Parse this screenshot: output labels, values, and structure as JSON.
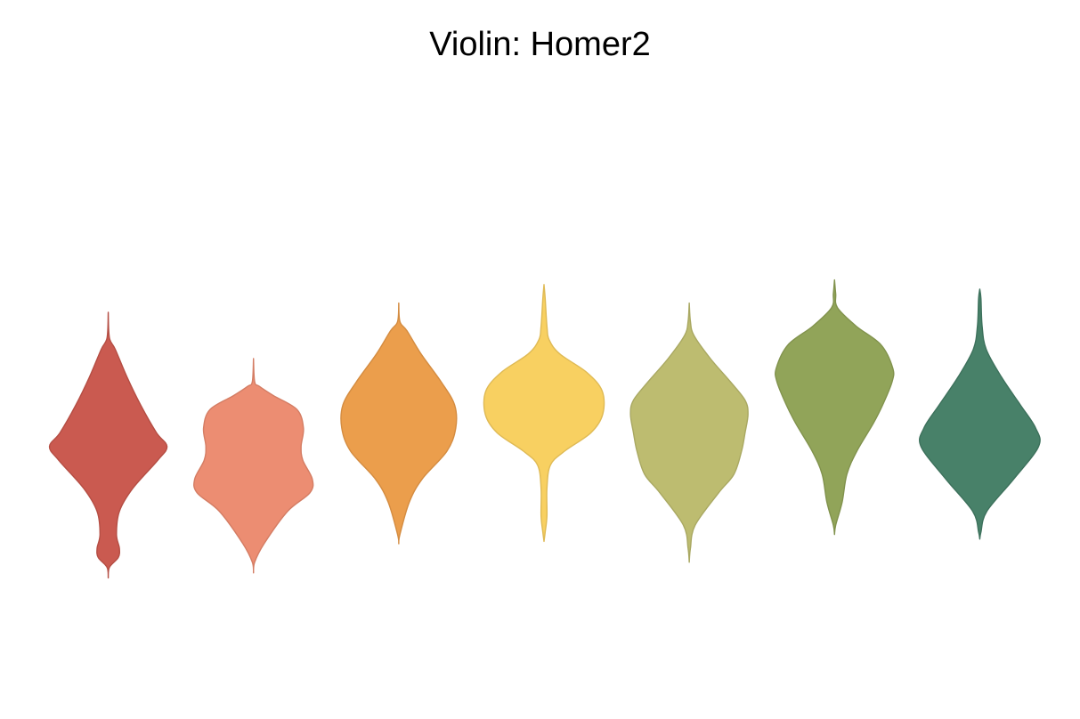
{
  "chart_data": {
    "type": "violin",
    "title": "Violin: Homer2",
    "xlabel": "",
    "ylabel": "",
    "grid": false,
    "legend": "none",
    "ylim": [
      0,
      1
    ],
    "series": [
      {
        "color": "#c9574c",
        "density": [
          [
            0.026,
            0
          ],
          [
            0.049,
            0.02
          ],
          [
            0.07,
            0.17
          ],
          [
            0.09,
            0.19
          ],
          [
            0.12,
            0.14
          ],
          [
            0.17,
            0.19
          ],
          [
            0.22,
            0.42
          ],
          [
            0.28,
            0.84
          ],
          [
            0.31,
            1.0
          ],
          [
            0.34,
            0.82
          ],
          [
            0.4,
            0.55
          ],
          [
            0.46,
            0.32
          ],
          [
            0.52,
            0.12
          ],
          [
            0.545,
            0.02
          ],
          [
            0.6,
            0
          ]
        ]
      },
      {
        "color": "#ec8b6f",
        "density": [
          [
            0.037,
            0
          ],
          [
            0.06,
            0.02
          ],
          [
            0.1,
            0.18
          ],
          [
            0.17,
            0.58
          ],
          [
            0.21,
            0.96
          ],
          [
            0.24,
            1.0
          ],
          [
            0.28,
            0.84
          ],
          [
            0.31,
            0.81
          ],
          [
            0.35,
            0.85
          ],
          [
            0.39,
            0.74
          ],
          [
            0.42,
            0.34
          ],
          [
            0.44,
            0.1
          ],
          [
            0.45,
            0.02
          ],
          [
            0.5,
            0
          ]
        ]
      },
      {
        "color": "#eb9c48",
        "density": [
          [
            0.1,
            0
          ],
          [
            0.12,
            0.02
          ],
          [
            0.19,
            0.18
          ],
          [
            0.24,
            0.4
          ],
          [
            0.3,
            0.82
          ],
          [
            0.35,
            0.97
          ],
          [
            0.4,
            0.95
          ],
          [
            0.45,
            0.72
          ],
          [
            0.51,
            0.38
          ],
          [
            0.56,
            0.14
          ],
          [
            0.58,
            0.02
          ],
          [
            0.62,
            0
          ]
        ]
      },
      {
        "color": "#f8cf5e",
        "density": [
          [
            0.105,
            0
          ],
          [
            0.125,
            0.02
          ],
          [
            0.16,
            0.05
          ],
          [
            0.22,
            0.05
          ],
          [
            0.27,
            0.11
          ],
          [
            0.3,
            0.35
          ],
          [
            0.34,
            0.8
          ],
          [
            0.38,
            1.0
          ],
          [
            0.43,
            0.99
          ],
          [
            0.47,
            0.73
          ],
          [
            0.51,
            0.27
          ],
          [
            0.54,
            0.09
          ],
          [
            0.57,
            0.05
          ],
          [
            0.63,
            0.02
          ],
          [
            0.66,
            0
          ]
        ]
      },
      {
        "color": "#bcbb6d",
        "density": [
          [
            0.06,
            0
          ],
          [
            0.09,
            0.02
          ],
          [
            0.14,
            0.1
          ],
          [
            0.21,
            0.5
          ],
          [
            0.25,
            0.76
          ],
          [
            0.3,
            0.89
          ],
          [
            0.34,
            0.95
          ],
          [
            0.38,
            1.0
          ],
          [
            0.41,
            0.95
          ],
          [
            0.45,
            0.7
          ],
          [
            0.5,
            0.36
          ],
          [
            0.55,
            0.08
          ],
          [
            0.58,
            0.02
          ],
          [
            0.62,
            0
          ]
        ]
      },
      {
        "color": "#8fa256",
        "density": [
          [
            0.12,
            0
          ],
          [
            0.14,
            0.02
          ],
          [
            0.19,
            0.13
          ],
          [
            0.25,
            0.21
          ],
          [
            0.3,
            0.38
          ],
          [
            0.36,
            0.66
          ],
          [
            0.4,
            0.82
          ],
          [
            0.45,
            0.98
          ],
          [
            0.48,
            0.99
          ],
          [
            0.53,
            0.79
          ],
          [
            0.57,
            0.37
          ],
          [
            0.61,
            0.05
          ],
          [
            0.64,
            0.02
          ],
          [
            0.67,
            0
          ]
        ]
      },
      {
        "color": "#447e66",
        "density": [
          [
            0.11,
            0
          ],
          [
            0.125,
            0.02
          ],
          [
            0.17,
            0.12
          ],
          [
            0.24,
            0.58
          ],
          [
            0.31,
            1.0
          ],
          [
            0.35,
            0.95
          ],
          [
            0.4,
            0.69
          ],
          [
            0.46,
            0.37
          ],
          [
            0.52,
            0.11
          ],
          [
            0.57,
            0.04
          ],
          [
            0.63,
            0.02
          ],
          [
            0.65,
            0
          ]
        ]
      }
    ]
  }
}
